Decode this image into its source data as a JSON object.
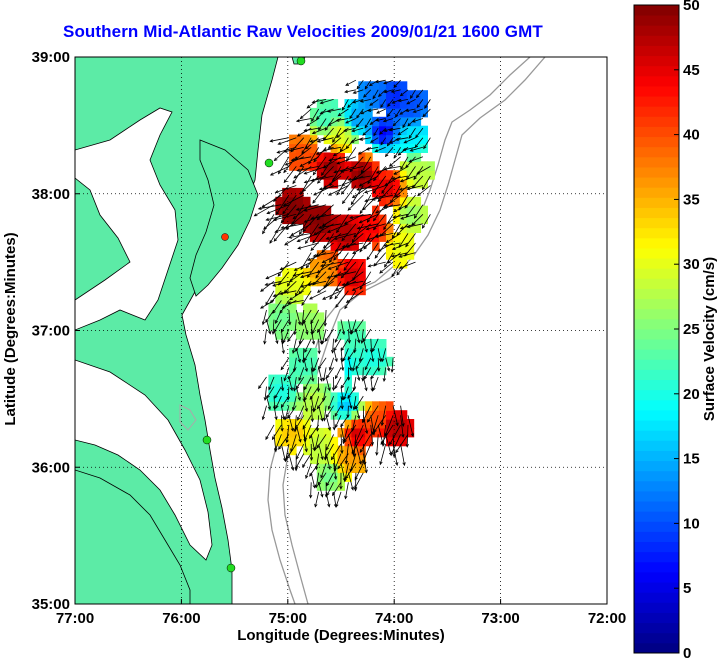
{
  "chart_data": {
    "type": "heatmap",
    "title": "Southern Mid-Atlantic Raw Velocities 2009/01/21 1600 GMT",
    "xlabel": "Longitude (Degrees:Minutes)",
    "ylabel": "Latitude (Degrees:Minutes)",
    "x_tick_labels": [
      "77:00",
      "76:00",
      "75:00",
      "74:00",
      "73:00",
      "72:00"
    ],
    "y_tick_labels": [
      "39:00",
      "38:00",
      "37:00",
      "36:00",
      "35:00"
    ],
    "x_ticks": [
      -77,
      -76,
      -75,
      -74,
      -73,
      -72
    ],
    "y_ticks": [
      39,
      38,
      37,
      36,
      35
    ],
    "xlim": [
      -77,
      -72
    ],
    "ylim": [
      35,
      39
    ],
    "grid": true,
    "colorbar": {
      "label": "Surface Velocity (cm/s)",
      "range": [
        0,
        50
      ],
      "tick_labels": [
        "0",
        "5",
        "10",
        "15",
        "20",
        "25",
        "30",
        "35",
        "40",
        "45",
        "50"
      ],
      "ticks": [
        0,
        5,
        10,
        15,
        20,
        25,
        30,
        35,
        40,
        45,
        50
      ],
      "colormap": "jet"
    },
    "colors": {
      "land": "#5ceba6",
      "ocean": "#ffffff",
      "title": "#0000ff",
      "station": "#22dd22",
      "station_alt": "#ff3300"
    },
    "speed_field": [
      {
        "lon": -74.2,
        "lat": 38.75,
        "speed": 12
      },
      {
        "lon": -74.0,
        "lat": 38.7,
        "speed": 8
      },
      {
        "lon": -73.85,
        "lat": 38.65,
        "speed": 10
      },
      {
        "lon": -74.35,
        "lat": 38.55,
        "speed": 14
      },
      {
        "lon": -74.1,
        "lat": 38.45,
        "speed": 6
      },
      {
        "lon": -73.85,
        "lat": 38.4,
        "speed": 18
      },
      {
        "lon": -74.5,
        "lat": 38.45,
        "speed": 30
      },
      {
        "lon": -74.65,
        "lat": 38.55,
        "speed": 22
      },
      {
        "lon": -74.85,
        "lat": 38.3,
        "speed": 40
      },
      {
        "lon": -74.6,
        "lat": 38.2,
        "speed": 49
      },
      {
        "lon": -74.3,
        "lat": 38.15,
        "speed": 50
      },
      {
        "lon": -74.05,
        "lat": 38.05,
        "speed": 46
      },
      {
        "lon": -73.8,
        "lat": 38.15,
        "speed": 28
      },
      {
        "lon": -73.85,
        "lat": 37.85,
        "speed": 26
      },
      {
        "lon": -74.95,
        "lat": 37.9,
        "speed": 50
      },
      {
        "lon": -74.7,
        "lat": 37.8,
        "speed": 50
      },
      {
        "lon": -74.45,
        "lat": 37.7,
        "speed": 48
      },
      {
        "lon": -74.2,
        "lat": 37.75,
        "speed": 44
      },
      {
        "lon": -73.95,
        "lat": 37.6,
        "speed": 30
      },
      {
        "lon": -74.4,
        "lat": 37.4,
        "speed": 46
      },
      {
        "lon": -74.65,
        "lat": 37.45,
        "speed": 36
      },
      {
        "lon": -74.95,
        "lat": 37.35,
        "speed": 30
      },
      {
        "lon": -75.05,
        "lat": 37.1,
        "speed": 24
      },
      {
        "lon": -74.8,
        "lat": 37.05,
        "speed": 26
      },
      {
        "lon": -74.4,
        "lat": 36.95,
        "speed": 22
      },
      {
        "lon": -74.2,
        "lat": 36.8,
        "speed": 20
      },
      {
        "lon": -74.5,
        "lat": 36.75,
        "speed": 18
      },
      {
        "lon": -74.85,
        "lat": 36.75,
        "speed": 22
      },
      {
        "lon": -75.05,
        "lat": 36.55,
        "speed": 20
      },
      {
        "lon": -74.75,
        "lat": 36.5,
        "speed": 28
      },
      {
        "lon": -74.45,
        "lat": 36.45,
        "speed": 16
      },
      {
        "lon": -74.15,
        "lat": 36.35,
        "speed": 40
      },
      {
        "lon": -74.35,
        "lat": 36.25,
        "speed": 46
      },
      {
        "lon": -74.0,
        "lat": 36.3,
        "speed": 48
      },
      {
        "lon": -74.95,
        "lat": 36.25,
        "speed": 34
      },
      {
        "lon": -74.7,
        "lat": 36.15,
        "speed": 28
      },
      {
        "lon": -74.45,
        "lat": 36.05,
        "speed": 36
      },
      {
        "lon": -74.6,
        "lat": 35.95,
        "speed": 24
      }
    ]
  }
}
